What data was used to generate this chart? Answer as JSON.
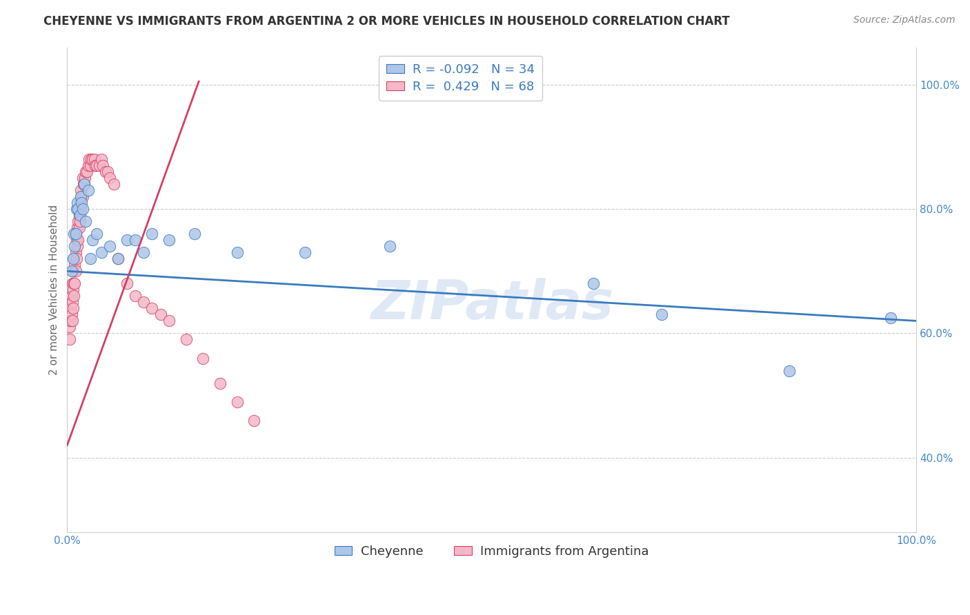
{
  "title": "CHEYENNE VS IMMIGRANTS FROM ARGENTINA 2 OR MORE VEHICLES IN HOUSEHOLD CORRELATION CHART",
  "source": "Source: ZipAtlas.com",
  "ylabel": "2 or more Vehicles in Household",
  "legend_label1": "Cheyenne",
  "legend_label2": "Immigrants from Argentina",
  "R1": "-0.092",
  "N1": "34",
  "R2": "0.429",
  "N2": "68",
  "color_blue": "#aec6e8",
  "color_pink": "#f4b8c8",
  "trendline_blue": "#3a7abf",
  "trendline_pink": "#d44060",
  "blue_x": [
    0.005,
    0.007,
    0.008,
    0.009,
    0.01,
    0.011,
    0.012,
    0.013,
    0.015,
    0.016,
    0.017,
    0.018,
    0.02,
    0.022,
    0.025,
    0.027,
    0.03,
    0.035,
    0.04,
    0.05,
    0.06,
    0.07,
    0.08,
    0.09,
    0.1,
    0.12,
    0.15,
    0.2,
    0.28,
    0.38,
    0.62,
    0.7,
    0.85,
    0.97
  ],
  "blue_y": [
    0.7,
    0.72,
    0.76,
    0.74,
    0.76,
    0.8,
    0.81,
    0.8,
    0.79,
    0.82,
    0.81,
    0.8,
    0.84,
    0.78,
    0.83,
    0.72,
    0.75,
    0.76,
    0.73,
    0.74,
    0.72,
    0.75,
    0.75,
    0.73,
    0.76,
    0.75,
    0.76,
    0.73,
    0.73,
    0.74,
    0.68,
    0.63,
    0.54,
    0.625
  ],
  "pink_x": [
    0.002,
    0.003,
    0.003,
    0.004,
    0.004,
    0.005,
    0.005,
    0.006,
    0.006,
    0.006,
    0.007,
    0.007,
    0.007,
    0.008,
    0.008,
    0.008,
    0.009,
    0.009,
    0.01,
    0.01,
    0.01,
    0.011,
    0.011,
    0.012,
    0.012,
    0.013,
    0.013,
    0.014,
    0.014,
    0.015,
    0.015,
    0.016,
    0.016,
    0.017,
    0.018,
    0.018,
    0.019,
    0.02,
    0.021,
    0.022,
    0.023,
    0.025,
    0.026,
    0.027,
    0.028,
    0.03,
    0.032,
    0.033,
    0.035,
    0.038,
    0.04,
    0.042,
    0.045,
    0.048,
    0.05,
    0.055,
    0.06,
    0.07,
    0.08,
    0.09,
    0.1,
    0.11,
    0.12,
    0.14,
    0.16,
    0.18,
    0.2,
    0.22
  ],
  "pink_y": [
    0.62,
    0.59,
    0.61,
    0.62,
    0.64,
    0.63,
    0.66,
    0.62,
    0.65,
    0.68,
    0.64,
    0.67,
    0.7,
    0.66,
    0.68,
    0.72,
    0.68,
    0.71,
    0.7,
    0.73,
    0.76,
    0.72,
    0.75,
    0.74,
    0.77,
    0.75,
    0.78,
    0.77,
    0.79,
    0.78,
    0.81,
    0.8,
    0.83,
    0.82,
    0.82,
    0.85,
    0.84,
    0.84,
    0.85,
    0.86,
    0.86,
    0.87,
    0.88,
    0.87,
    0.88,
    0.88,
    0.88,
    0.87,
    0.87,
    0.87,
    0.88,
    0.87,
    0.86,
    0.86,
    0.85,
    0.84,
    0.72,
    0.68,
    0.66,
    0.65,
    0.64,
    0.63,
    0.62,
    0.59,
    0.56,
    0.52,
    0.49,
    0.46
  ],
  "blue_trend_x": [
    0.0,
    1.0
  ],
  "blue_trend_y": [
    0.7,
    0.62
  ],
  "pink_trend_x": [
    0.0,
    0.155
  ],
  "pink_trend_y": [
    0.42,
    1.005
  ],
  "xlim": [
    0.0,
    1.0
  ],
  "ylim": [
    0.28,
    1.06
  ],
  "yticks": [
    0.4,
    0.6,
    0.8,
    1.0
  ],
  "ytick_labels": [
    "40.0%",
    "60.0%",
    "80.0%",
    "100.0%"
  ]
}
